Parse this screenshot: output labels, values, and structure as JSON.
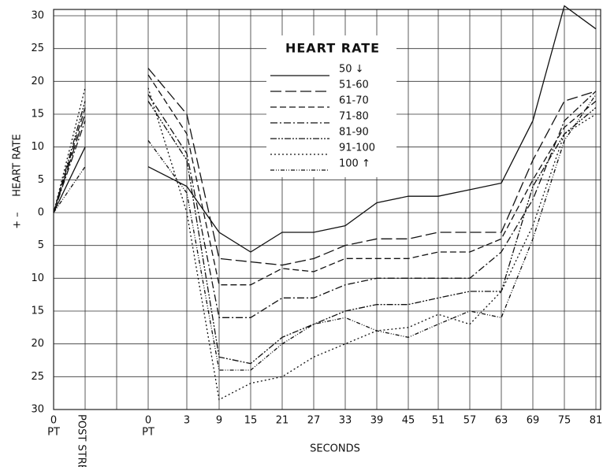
{
  "chart_data": {
    "type": "line",
    "legend_title": "HEART RATE",
    "y_label": "HEART RATE",
    "y_sign_label": "+ –",
    "x_label": "SECONDS",
    "categories": [
      "0",
      "POST STRESS",
      null,
      "0",
      "3",
      "9",
      "15",
      "21",
      "27",
      "33",
      "39",
      "45",
      "51",
      "57",
      "63",
      "69",
      "75",
      "81"
    ],
    "category_sublabels": [
      "PT",
      null,
      null,
      "PT",
      null,
      null,
      null,
      null,
      null,
      null,
      null,
      null,
      null,
      null,
      null,
      null,
      null,
      null
    ],
    "ylim": [
      -30,
      30
    ],
    "yticks": [
      {
        "value": -30,
        "label": "30"
      },
      {
        "value": -25,
        "label": "25"
      },
      {
        "value": -20,
        "label": "20"
      },
      {
        "value": -15,
        "label": "15"
      },
      {
        "value": -10,
        "label": "10"
      },
      {
        "value": -5,
        "label": "5"
      },
      0,
      5,
      10,
      15,
      20,
      25,
      30
    ],
    "grid": true,
    "series": [
      {
        "name": "50 ↓",
        "color": "#111111",
        "values": [
          0,
          10,
          null,
          7,
          4,
          -3,
          -6,
          -3,
          -3,
          -2,
          1.5,
          2.5,
          2.5,
          3.5,
          4.5,
          14,
          31.5,
          28
        ]
      },
      {
        "name": "51-60",
        "color": "#111111",
        "dash": "14 5",
        "values": [
          0,
          15,
          null,
          22,
          15,
          -7,
          -7.5,
          -8,
          -7,
          -5,
          -4,
          -4,
          -3,
          -3,
          -3,
          8,
          17,
          18.5
        ]
      },
      {
        "name": "61-70",
        "color": "#111111",
        "dash": "8 4",
        "values": [
          0,
          16,
          null,
          21,
          12,
          -11,
          -11,
          -8.5,
          -9,
          -7,
          -7,
          -7,
          -6,
          -6,
          -4,
          5,
          13,
          17
        ]
      },
      {
        "name": "71-80",
        "color": "#111111",
        "dash": "9 3 2 3",
        "values": [
          0,
          14,
          null,
          18,
          9,
          -16,
          -16,
          -13,
          -13,
          -11,
          -10,
          -10,
          -10,
          -10,
          -6,
          2,
          14,
          18.5
        ]
      },
      {
        "name": "81-90",
        "color": "#111111",
        "dash": "8 2 2 2 2 2",
        "values": [
          0,
          17,
          null,
          17,
          8,
          -22,
          -23,
          -19,
          -17,
          -15,
          -14,
          -14,
          -13,
          -12,
          -12,
          4,
          12,
          16
        ]
      },
      {
        "name": "91-100",
        "color": "#111111",
        "dash": "2 3",
        "values": [
          0,
          19,
          null,
          19,
          0,
          -28.5,
          -26,
          -25,
          -22,
          -20,
          -18,
          -17.5,
          -15.5,
          -17,
          -12,
          -2,
          12,
          15
        ]
      },
      {
        "name": "100 ↑",
        "color": "#111111",
        "dash": "5 2 1 2 1 2",
        "values": [
          0,
          7,
          null,
          11,
          3,
          -24,
          -24,
          -20,
          -17,
          -16,
          -18,
          -19,
          -17,
          -15,
          -16,
          -4,
          11,
          18
        ]
      }
    ]
  }
}
